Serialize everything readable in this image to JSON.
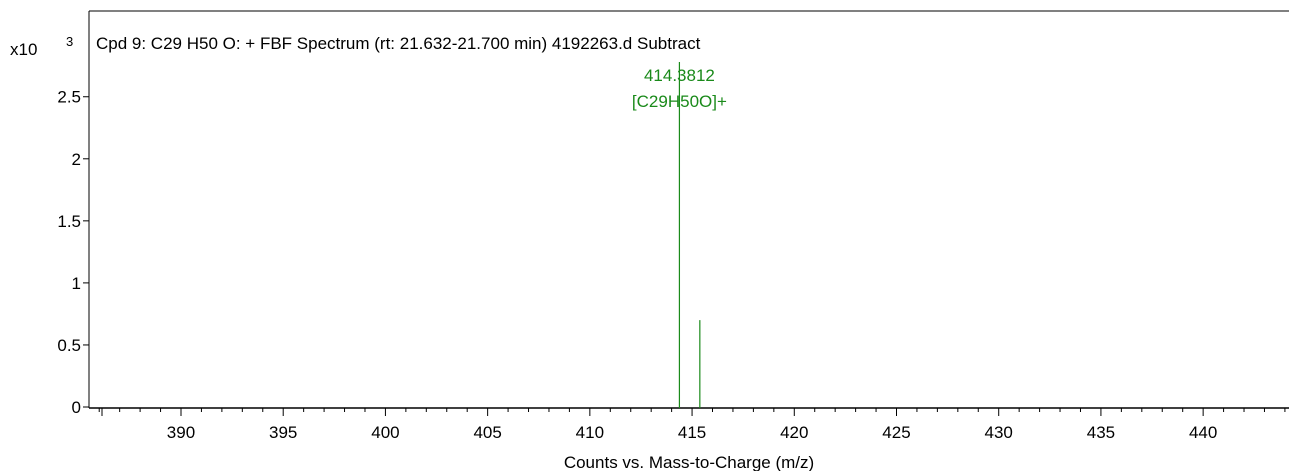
{
  "chart_data": {
    "type": "bar",
    "title": "Cpd 9: C29 H50 O: + FBF Spectrum (rt: 21.632-21.700 min) 4192263.d  Subtract",
    "xlabel": "Counts vs. Mass-to-Charge (m/z)",
    "ylabel": "",
    "y_multiplier": {
      "base": "x10",
      "exponent": "3"
    },
    "xlim": [
      385.5,
      444.2
    ],
    "ylim": [
      0,
      2.78
    ],
    "x_ticks": [
      390,
      395,
      400,
      405,
      410,
      415,
      420,
      425,
      430,
      435,
      440
    ],
    "y_ticks": [
      {
        "value": 0,
        "label": "0"
      },
      {
        "value": 0.5,
        "label": "0.5"
      },
      {
        "value": 1,
        "label": "1"
      },
      {
        "value": 1.5,
        "label": "1.5"
      },
      {
        "value": 2,
        "label": "2"
      },
      {
        "value": 2.5,
        "label": "2.5"
      }
    ],
    "peaks": [
      {
        "mz": 414.3812,
        "intensity": 2.78,
        "mz_label": "414.3812",
        "ion_label": "[C29H50O]+"
      },
      {
        "mz": 415.38,
        "intensity": 0.7
      }
    ],
    "grid": false,
    "colors": {
      "peak": "#1a8a1a",
      "axis": "#000000",
      "frame": "#000000"
    }
  }
}
